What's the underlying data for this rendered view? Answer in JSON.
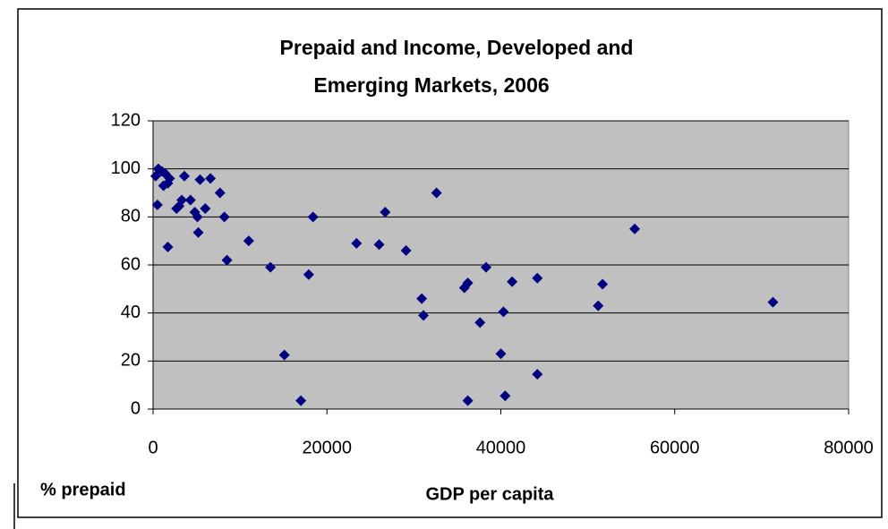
{
  "chart_data": {
    "type": "scatter",
    "title": [
      "Prepaid and Income, Developed and",
      "Emerging Markets, 2006"
    ],
    "x_label": "GDP per capita",
    "y_label": "% prepaid",
    "x": [
      300,
      600,
      1000,
      500,
      1400,
      1200,
      1700,
      1900,
      1700,
      2700,
      3000,
      3300,
      3600,
      4300,
      4800,
      5100,
      5400,
      6000,
      5200,
      6600,
      7700,
      8200,
      8500,
      11000,
      13500,
      15100,
      17000,
      17900,
      18400,
      23400,
      26000,
      26700,
      29100,
      30900,
      31100,
      32600,
      35800,
      36200,
      36200,
      37600,
      38300,
      40000,
      40300,
      40500,
      41300,
      44200,
      44200,
      51200,
      51700,
      55400,
      71300
    ],
    "values": [
      97,
      100,
      99,
      85,
      98,
      93,
      94,
      96,
      67.5,
      83.5,
      84.5,
      87,
      97,
      87,
      82,
      80,
      95.5,
      83.5,
      73.5,
      96,
      90,
      80,
      62,
      70,
      59,
      22.5,
      3.5,
      56,
      80,
      69,
      68.5,
      82,
      66,
      46,
      39,
      90,
      50.5,
      52.5,
      3.5,
      36,
      59,
      23,
      40.5,
      5.5,
      53,
      54.5,
      14.5,
      43,
      52,
      75,
      44.5
    ],
    "color": "#000080",
    "plot_background": "#c0c0c0",
    "xlim": [
      0,
      80000
    ],
    "xticks": [
      0,
      20000,
      40000,
      60000,
      80000
    ],
    "ylim": [
      0,
      120
    ],
    "yticks": [
      0,
      20,
      40,
      60,
      80,
      100,
      120
    ],
    "grid": true
  }
}
